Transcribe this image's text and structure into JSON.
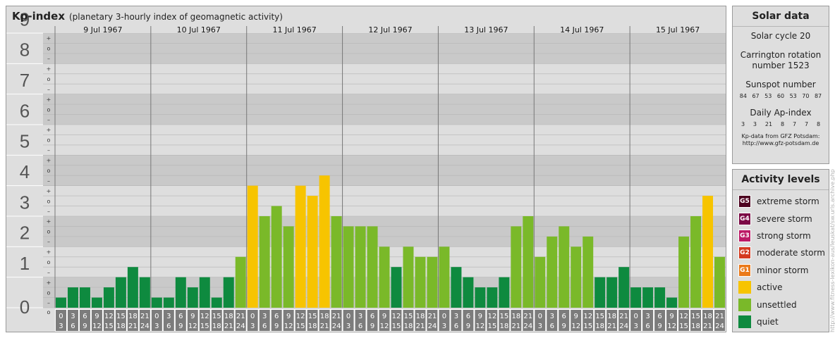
{
  "title": "Kp-index",
  "subtitle": "(planetary 3-hourly index of geomagnetic activity)",
  "chart_data": {
    "type": "bar",
    "ylim": [
      0,
      9
    ],
    "y_ticks": [
      "0",
      "1",
      "2",
      "3",
      "4",
      "5",
      "6",
      "7",
      "8",
      "9"
    ],
    "minor_labels": [
      "+",
      "o",
      "–"
    ],
    "days": [
      "9 Jul 1967",
      "10 Jul 1967",
      "11 Jul 1967",
      "12 Jul 1967",
      "13 Jul 1967",
      "14 Jul 1967",
      "15 Jul 1967"
    ],
    "hour_labels_top": [
      "0",
      "3",
      "6",
      "9",
      "12",
      "15",
      "18",
      "21"
    ],
    "hour_labels_bottom": [
      "3",
      "6",
      "9",
      "12",
      "15",
      "18",
      "21",
      "24"
    ],
    "values": [
      0.333,
      0.667,
      0.667,
      0.333,
      0.667,
      1.0,
      1.333,
      1.0,
      0.333,
      0.333,
      1.0,
      0.667,
      1.0,
      0.333,
      1.0,
      1.667,
      4.0,
      3.0,
      3.333,
      2.667,
      4.0,
      3.667,
      4.333,
      3.0,
      2.667,
      2.667,
      2.667,
      2.0,
      1.333,
      2.0,
      1.667,
      1.667,
      2.0,
      1.333,
      1.0,
      0.667,
      0.667,
      1.0,
      2.667,
      3.0,
      1.667,
      2.333,
      2.667,
      2.0,
      2.333,
      1.0,
      1.0,
      1.333,
      0.667,
      0.667,
      0.667,
      0.333,
      2.333,
      3.0,
      3.667,
      1.667
    ],
    "colors": {
      "quiet": "#0e8a3f",
      "unsettled": "#7ab929",
      "active": "#f7c400",
      "grid_band_dark": "#c9c9c9",
      "grid_band_light": "#dedede",
      "axis_bg": "#7c7c7c"
    }
  },
  "solar": {
    "title": "Solar data",
    "cycle": "Solar cycle 20",
    "carrington_1": "Carrington rotation",
    "carrington_2": "number 1523",
    "sunspot_label": "Sunspot number",
    "sunspots": [
      "84",
      "67",
      "53",
      "60",
      "53",
      "70",
      "87"
    ],
    "ap_label": "Daily Ap-index",
    "ap": [
      "3",
      "3",
      "21",
      "8",
      "7",
      "7",
      "8"
    ],
    "credit_1": "Kp-data from GFZ Potsdam:",
    "credit_2": "http://www.gfz-potsdam.de"
  },
  "activity": {
    "title": "Activity levels",
    "levels": [
      {
        "badge": "G5",
        "label": "extreme storm",
        "color": "#4d0320"
      },
      {
        "badge": "G4",
        "label": "severe storm",
        "color": "#7b0a45"
      },
      {
        "badge": "G3",
        "label": "strong storm",
        "color": "#bc1a66"
      },
      {
        "badge": "G2",
        "label": "moderate storm",
        "color": "#d43a1f"
      },
      {
        "badge": "G1",
        "label": "minor storm",
        "color": "#ea7a1b"
      },
      {
        "badge": "",
        "label": "active",
        "color": "#f7c400"
      },
      {
        "badge": "",
        "label": "unsettled",
        "color": "#7ab929"
      },
      {
        "badge": "",
        "label": "quiet",
        "color": "#0e8a3f"
      }
    ]
  },
  "watermark": "http://www.fitness-lexikon-aus/leuskat/sw.urls.archive.php"
}
